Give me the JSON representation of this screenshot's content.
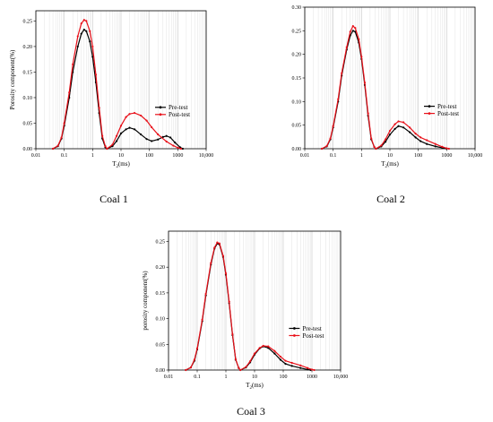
{
  "colors": {
    "pre": "#000000",
    "post": "#e8111a",
    "grid_major": "#c8c8c8",
    "grid_minor": "#e3e3e3"
  },
  "chart_data": [
    {
      "type": "line",
      "caption": "Coal 1",
      "xscale": "log",
      "xlim": [
        0.01,
        10000
      ],
      "ylim": [
        0,
        0.27
      ],
      "x_ticks": [
        0.01,
        0.1,
        1,
        10,
        100,
        1000,
        10000
      ],
      "x_tick_labels": [
        "0.01",
        "0.1",
        "1",
        "10",
        "100",
        "1000",
        "10,000"
      ],
      "y_ticks": [
        0,
        0.05,
        0.1,
        0.15,
        0.2,
        0.25
      ],
      "y_tick_labels": [
        "0.00",
        "0.05",
        "0.10",
        "0.15",
        "0.20",
        "0.25"
      ],
      "xlabel_main": "T",
      "xlabel_sub": "2",
      "xlabel_unit": "(ms)",
      "ylabel": "Porosity component(%)",
      "grid": true,
      "legend_position": "middle-right",
      "series": [
        {
          "name": "Pre-test",
          "points": [
            [
              0.04,
              0
            ],
            [
              0.06,
              0.005
            ],
            [
              0.08,
              0.02
            ],
            [
              0.1,
              0.045
            ],
            [
              0.15,
              0.1
            ],
            [
              0.2,
              0.15
            ],
            [
              0.3,
              0.2
            ],
            [
              0.4,
              0.225
            ],
            [
              0.5,
              0.233
            ],
            [
              0.6,
              0.23
            ],
            [
              0.8,
              0.21
            ],
            [
              1,
              0.18
            ],
            [
              1.3,
              0.13
            ],
            [
              1.7,
              0.07
            ],
            [
              2.2,
              0.02
            ],
            [
              2.8,
              0.003
            ],
            [
              3.2,
              0
            ],
            [
              5,
              0.005
            ],
            [
              7,
              0.015
            ],
            [
              10,
              0.03
            ],
            [
              15,
              0.038
            ],
            [
              20,
              0.041
            ],
            [
              30,
              0.038
            ],
            [
              50,
              0.028
            ],
            [
              80,
              0.019
            ],
            [
              120,
              0.015
            ],
            [
              200,
              0.018
            ],
            [
              300,
              0.023
            ],
            [
              400,
              0.025
            ],
            [
              550,
              0.022
            ],
            [
              800,
              0.012
            ],
            [
              1200,
              0.003
            ],
            [
              1500,
              0
            ]
          ]
        },
        {
          "name": "Post-test",
          "points": [
            [
              0.04,
              0
            ],
            [
              0.06,
              0.006
            ],
            [
              0.08,
              0.022
            ],
            [
              0.1,
              0.05
            ],
            [
              0.15,
              0.11
            ],
            [
              0.2,
              0.165
            ],
            [
              0.3,
              0.22
            ],
            [
              0.4,
              0.245
            ],
            [
              0.5,
              0.252
            ],
            [
              0.6,
              0.25
            ],
            [
              0.8,
              0.23
            ],
            [
              1,
              0.2
            ],
            [
              1.3,
              0.145
            ],
            [
              1.7,
              0.08
            ],
            [
              2.2,
              0.025
            ],
            [
              2.8,
              0.005
            ],
            [
              3.2,
              0
            ],
            [
              5,
              0.008
            ],
            [
              7,
              0.025
            ],
            [
              10,
              0.045
            ],
            [
              15,
              0.062
            ],
            [
              20,
              0.068
            ],
            [
              30,
              0.07
            ],
            [
              50,
              0.065
            ],
            [
              80,
              0.055
            ],
            [
              120,
              0.042
            ],
            [
              200,
              0.028
            ],
            [
              400,
              0.014
            ],
            [
              700,
              0.006
            ],
            [
              1000,
              0.002
            ],
            [
              1300,
              0
            ]
          ]
        }
      ]
    },
    {
      "type": "line",
      "caption": "Coal 2",
      "xscale": "log",
      "xlim": [
        0.01,
        10000
      ],
      "ylim": [
        0,
        0.3
      ],
      "x_ticks": [
        0.01,
        0.1,
        1,
        10,
        100,
        1000,
        10000
      ],
      "x_tick_labels": [
        "0.01",
        "0.1",
        "1",
        "10",
        "100",
        "1000",
        "10,000"
      ],
      "y_ticks": [
        0,
        0.05,
        0.1,
        0.15,
        0.2,
        0.25,
        0.3
      ],
      "y_tick_labels": [
        "0.00",
        "0.05",
        "0.10",
        "0.15",
        "0.20",
        "0.25",
        "0.30"
      ],
      "xlabel_main": "T",
      "xlabel_sub": "2",
      "xlabel_unit": "(ms)",
      "ylabel": "",
      "grid": true,
      "legend_position": "middle-right",
      "series": [
        {
          "name": "Pre-test",
          "points": [
            [
              0.04,
              0
            ],
            [
              0.06,
              0.005
            ],
            [
              0.08,
              0.02
            ],
            [
              0.1,
              0.045
            ],
            [
              0.15,
              0.1
            ],
            [
              0.2,
              0.155
            ],
            [
              0.3,
              0.21
            ],
            [
              0.4,
              0.24
            ],
            [
              0.5,
              0.25
            ],
            [
              0.6,
              0.248
            ],
            [
              0.8,
              0.225
            ],
            [
              1,
              0.19
            ],
            [
              1.3,
              0.135
            ],
            [
              1.7,
              0.07
            ],
            [
              2.2,
              0.02
            ],
            [
              2.8,
              0.004
            ],
            [
              3.2,
              0
            ],
            [
              5,
              0.005
            ],
            [
              7,
              0.015
            ],
            [
              10,
              0.03
            ],
            [
              15,
              0.042
            ],
            [
              20,
              0.048
            ],
            [
              30,
              0.045
            ],
            [
              50,
              0.035
            ],
            [
              80,
              0.024
            ],
            [
              120,
              0.016
            ],
            [
              200,
              0.01
            ],
            [
              400,
              0.005
            ],
            [
              700,
              0.002
            ],
            [
              1000,
              0
            ]
          ]
        },
        {
          "name": "Post-test",
          "points": [
            [
              0.04,
              0
            ],
            [
              0.06,
              0.006
            ],
            [
              0.08,
              0.022
            ],
            [
              0.1,
              0.048
            ],
            [
              0.15,
              0.105
            ],
            [
              0.2,
              0.16
            ],
            [
              0.3,
              0.215
            ],
            [
              0.4,
              0.248
            ],
            [
              0.5,
              0.26
            ],
            [
              0.6,
              0.256
            ],
            [
              0.8,
              0.232
            ],
            [
              1,
              0.195
            ],
            [
              1.3,
              0.14
            ],
            [
              1.7,
              0.075
            ],
            [
              2.2,
              0.022
            ],
            [
              2.8,
              0.004
            ],
            [
              3.2,
              0
            ],
            [
              5,
              0.007
            ],
            [
              7,
              0.02
            ],
            [
              10,
              0.038
            ],
            [
              15,
              0.052
            ],
            [
              20,
              0.058
            ],
            [
              30,
              0.056
            ],
            [
              50,
              0.045
            ],
            [
              80,
              0.032
            ],
            [
              120,
              0.024
            ],
            [
              200,
              0.018
            ],
            [
              400,
              0.01
            ],
            [
              700,
              0.004
            ],
            [
              1000,
              0.001
            ],
            [
              1200,
              0
            ]
          ]
        }
      ]
    },
    {
      "type": "line",
      "caption": "Coal 3",
      "xscale": "log",
      "xlim": [
        0.01,
        10000
      ],
      "ylim": [
        0,
        0.27
      ],
      "x_ticks": [
        0.01,
        0.1,
        1,
        10,
        100,
        1000,
        10000
      ],
      "x_tick_labels": [
        "0.01",
        "0.1",
        "1",
        "10",
        "100",
        "1000",
        "10,000"
      ],
      "y_ticks": [
        0,
        0.05,
        0.1,
        0.15,
        0.2,
        0.25
      ],
      "y_tick_labels": [
        "0.00",
        "0.05",
        "0.10",
        "0.15",
        "0.20",
        "0.25"
      ],
      "xlabel_main": "T",
      "xlabel_sub": "2",
      "xlabel_unit": "(ms)",
      "ylabel": "porosity component(%)",
      "grid": true,
      "legend_position": "middle-right",
      "series": [
        {
          "name": "Pre-test",
          "points": [
            [
              0.04,
              0
            ],
            [
              0.06,
              0.005
            ],
            [
              0.08,
              0.018
            ],
            [
              0.1,
              0.04
            ],
            [
              0.15,
              0.095
            ],
            [
              0.2,
              0.145
            ],
            [
              0.3,
              0.205
            ],
            [
              0.4,
              0.236
            ],
            [
              0.5,
              0.246
            ],
            [
              0.6,
              0.244
            ],
            [
              0.8,
              0.22
            ],
            [
              1,
              0.185
            ],
            [
              1.3,
              0.13
            ],
            [
              1.7,
              0.068
            ],
            [
              2.2,
              0.02
            ],
            [
              2.8,
              0.004
            ],
            [
              3.2,
              0
            ],
            [
              5,
              0.005
            ],
            [
              7,
              0.015
            ],
            [
              10,
              0.03
            ],
            [
              15,
              0.042
            ],
            [
              20,
              0.046
            ],
            [
              30,
              0.043
            ],
            [
              50,
              0.032
            ],
            [
              80,
              0.02
            ],
            [
              120,
              0.012
            ],
            [
              200,
              0.008
            ],
            [
              400,
              0.004
            ],
            [
              700,
              0.001
            ],
            [
              900,
              0
            ]
          ]
        },
        {
          "name": "Post-test",
          "points": [
            [
              0.04,
              0
            ],
            [
              0.06,
              0.005
            ],
            [
              0.08,
              0.02
            ],
            [
              0.1,
              0.042
            ],
            [
              0.15,
              0.098
            ],
            [
              0.2,
              0.148
            ],
            [
              0.3,
              0.208
            ],
            [
              0.4,
              0.238
            ],
            [
              0.5,
              0.248
            ],
            [
              0.6,
              0.246
            ],
            [
              0.8,
              0.222
            ],
            [
              1,
              0.188
            ],
            [
              1.3,
              0.133
            ],
            [
              1.7,
              0.07
            ],
            [
              2.2,
              0.021
            ],
            [
              2.8,
              0.004
            ],
            [
              3.2,
              0
            ],
            [
              5,
              0.006
            ],
            [
              7,
              0.017
            ],
            [
              10,
              0.032
            ],
            [
              15,
              0.043
            ],
            [
              20,
              0.047
            ],
            [
              30,
              0.046
            ],
            [
              50,
              0.037
            ],
            [
              80,
              0.026
            ],
            [
              120,
              0.018
            ],
            [
              200,
              0.014
            ],
            [
              400,
              0.009
            ],
            [
              700,
              0.004
            ],
            [
              1000,
              0.001
            ],
            [
              1200,
              0
            ]
          ]
        }
      ]
    }
  ]
}
